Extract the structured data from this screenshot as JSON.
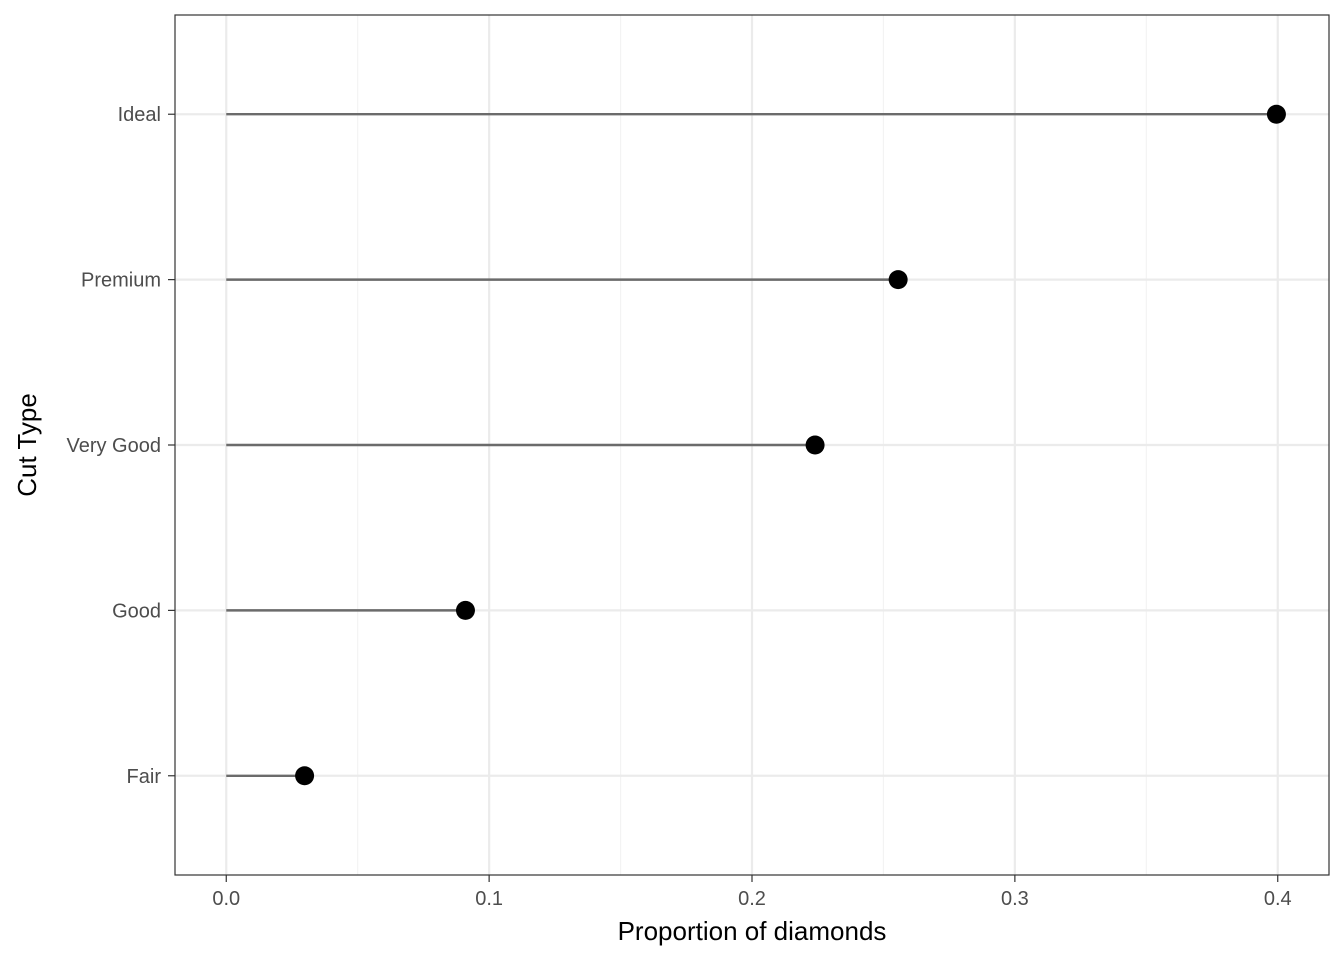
{
  "chart_data": {
    "type": "lollipop",
    "categories": [
      "Fair",
      "Good",
      "Very Good",
      "Premium",
      "Ideal"
    ],
    "values": [
      0.0298,
      0.091,
      0.224,
      0.2556,
      0.3995
    ],
    "xlabel": "Proportion of diamonds",
    "ylabel": "Cut Type",
    "xlim": [
      -0.0195,
      0.4195
    ],
    "xticks": [
      0.0,
      0.1,
      0.2,
      0.3,
      0.4
    ],
    "xtick_labels": [
      "0.0",
      "0.1",
      "0.2",
      "0.3",
      "0.4"
    ],
    "xminor": [
      0.05,
      0.15,
      0.25,
      0.35
    ],
    "grid": true,
    "legend": "none",
    "colors": {
      "segment": "#6b6b6b",
      "point": "#000000",
      "grid_major": "#ebebeb",
      "grid_minor": "#f3f3f3",
      "panel_border": "#333333",
      "tick_text": "#4d4d4d"
    }
  }
}
